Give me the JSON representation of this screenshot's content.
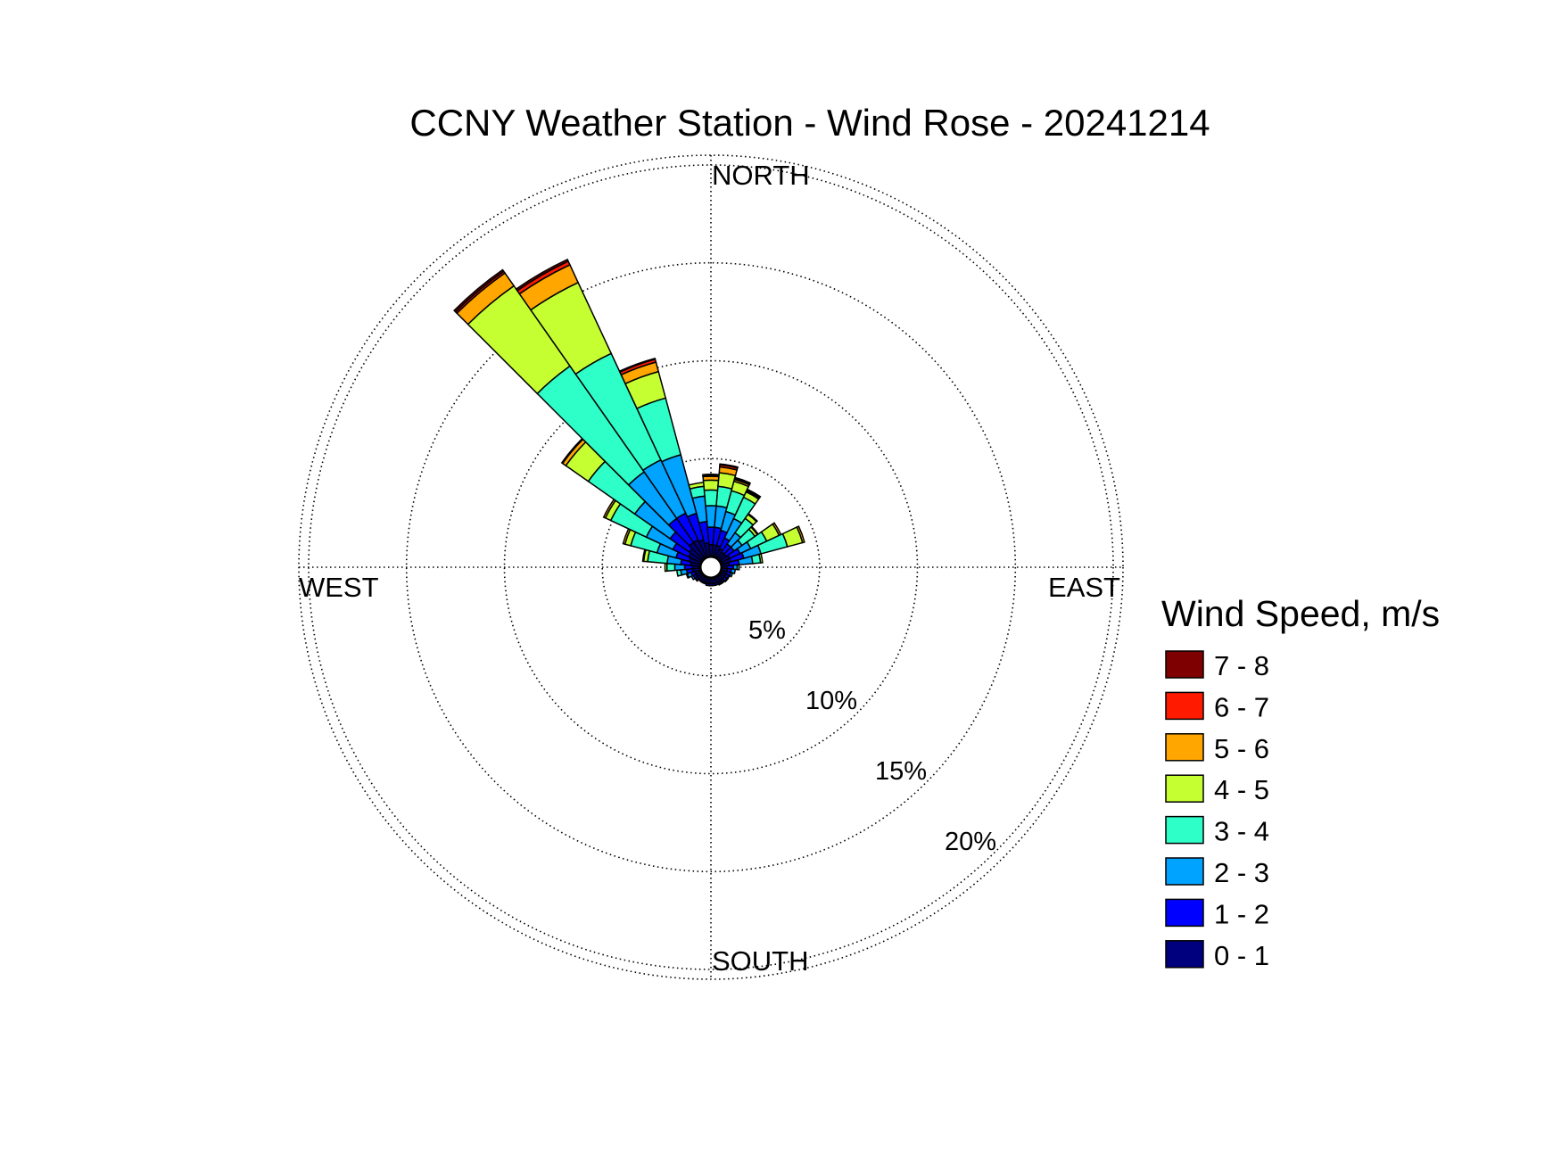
{
  "chart_data": {
    "type": "wind-rose",
    "title": "CCNY Weather Station - Wind Rose - 20241214",
    "directions": {
      "north": "NORTH",
      "east": "EAST",
      "south": "SOUTH",
      "west": "WEST"
    },
    "radial_ticks": [
      5,
      10,
      15,
      20
    ],
    "radial_tick_labels": [
      "5%",
      "10%",
      "15%",
      "20%"
    ],
    "radial_max": 20.5,
    "legend_title": "Wind Speed, m/s",
    "speed_bins": [
      {
        "label": "0 - 1",
        "color": "#00007F"
      },
      {
        "label": "1 - 2",
        "color": "#0000FF"
      },
      {
        "label": "2 - 3",
        "color": "#00A3FF"
      },
      {
        "label": "3 - 4",
        "color": "#2EFFC9"
      },
      {
        "label": "4 - 5",
        "color": "#C5FF32"
      },
      {
        "label": "5 - 6",
        "color": "#FFA600"
      },
      {
        "label": "6 - 7",
        "color": "#FF1A00"
      },
      {
        "label": "7 - 8",
        "color": "#7F0000"
      }
    ],
    "sector_width_deg": 10,
    "sectors": [
      {
        "direction_deg": 0,
        "cumulative_pct": [
          0.6,
          1.5,
          2.6,
          3.4,
          3.9,
          4.1,
          4.15,
          4.2
        ]
      },
      {
        "direction_deg": 10,
        "cumulative_pct": [
          0.6,
          1.5,
          2.6,
          3.6,
          4.3,
          4.6,
          4.7,
          4.75
        ]
      },
      {
        "direction_deg": 20,
        "cumulative_pct": [
          0.6,
          1.4,
          2.4,
          3.5,
          4.0,
          4.1,
          4.15,
          4.2
        ]
      },
      {
        "direction_deg": 30,
        "cumulative_pct": [
          0.5,
          1.1,
          2.2,
          3.4,
          3.7,
          3.75,
          3.8,
          3.85
        ]
      },
      {
        "direction_deg": 40,
        "cumulative_pct": [
          0.4,
          0.9,
          1.6,
          2.5,
          2.75,
          2.8,
          2.8,
          2.8
        ]
      },
      {
        "direction_deg": 50,
        "cumulative_pct": [
          0.4,
          0.9,
          1.4,
          2.2,
          2.35,
          2.4,
          2.4,
          2.4
        ]
      },
      {
        "direction_deg": 60,
        "cumulative_pct": [
          0.5,
          1.1,
          1.7,
          2.6,
          3.3,
          3.4,
          3.4,
          3.4
        ]
      },
      {
        "direction_deg": 70,
        "cumulative_pct": [
          0.5,
          1.2,
          2.1,
          3.5,
          4.3,
          4.4,
          4.4,
          4.4
        ]
      },
      {
        "direction_deg": 80,
        "cumulative_pct": [
          0.4,
          0.9,
          1.6,
          2.0,
          2.1,
          2.1,
          2.1,
          2.1
        ]
      },
      {
        "direction_deg": 90,
        "cumulative_pct": [
          0.3,
          0.6,
          0.8,
          0.9,
          0.9,
          0.9,
          0.9,
          0.9
        ]
      },
      {
        "direction_deg": 100,
        "cumulative_pct": [
          0.3,
          0.5,
          0.7,
          0.7,
          0.7,
          0.7,
          0.7,
          0.7
        ]
      },
      {
        "direction_deg": 110,
        "cumulative_pct": [
          0.3,
          0.5,
          0.6,
          0.6,
          0.6,
          0.6,
          0.6,
          0.6
        ]
      },
      {
        "direction_deg": 120,
        "cumulative_pct": [
          0.3,
          0.45,
          0.5,
          0.5,
          0.5,
          0.5,
          0.5,
          0.5
        ]
      },
      {
        "direction_deg": 130,
        "cumulative_pct": [
          0.3,
          0.45,
          0.5,
          0.5,
          0.5,
          0.5,
          0.5,
          0.5
        ]
      },
      {
        "direction_deg": 140,
        "cumulative_pct": [
          0.3,
          0.4,
          0.45,
          0.45,
          0.45,
          0.45,
          0.45,
          0.45
        ]
      },
      {
        "direction_deg": 150,
        "cumulative_pct": [
          0.3,
          0.4,
          0.45,
          0.45,
          0.45,
          0.45,
          0.45,
          0.45
        ]
      },
      {
        "direction_deg": 160,
        "cumulative_pct": [
          0.3,
          0.4,
          0.4,
          0.4,
          0.4,
          0.4,
          0.4,
          0.4
        ]
      },
      {
        "direction_deg": 170,
        "cumulative_pct": [
          0.3,
          0.4,
          0.4,
          0.4,
          0.4,
          0.4,
          0.4,
          0.4
        ]
      },
      {
        "direction_deg": 180,
        "cumulative_pct": [
          0.3,
          0.4,
          0.4,
          0.4,
          0.4,
          0.4,
          0.4,
          0.4
        ]
      },
      {
        "direction_deg": 190,
        "cumulative_pct": [
          0.3,
          0.4,
          0.4,
          0.4,
          0.4,
          0.4,
          0.4,
          0.4
        ]
      },
      {
        "direction_deg": 200,
        "cumulative_pct": [
          0.3,
          0.35,
          0.35,
          0.35,
          0.35,
          0.35,
          0.35,
          0.35
        ]
      },
      {
        "direction_deg": 210,
        "cumulative_pct": [
          0.3,
          0.35,
          0.35,
          0.35,
          0.35,
          0.35,
          0.35,
          0.35
        ]
      },
      {
        "direction_deg": 220,
        "cumulative_pct": [
          0.3,
          0.35,
          0.35,
          0.35,
          0.35,
          0.35,
          0.35,
          0.35
        ]
      },
      {
        "direction_deg": 230,
        "cumulative_pct": [
          0.3,
          0.4,
          0.45,
          0.45,
          0.45,
          0.45,
          0.45,
          0.45
        ]
      },
      {
        "direction_deg": 240,
        "cumulative_pct": [
          0.3,
          0.45,
          0.55,
          0.55,
          0.55,
          0.55,
          0.55,
          0.55
        ]
      },
      {
        "direction_deg": 250,
        "cumulative_pct": [
          0.3,
          0.5,
          0.7,
          0.75,
          0.75,
          0.75,
          0.75,
          0.75
        ]
      },
      {
        "direction_deg": 260,
        "cumulative_pct": [
          0.4,
          0.7,
          1.0,
          1.2,
          1.2,
          1.2,
          1.2,
          1.2
        ]
      },
      {
        "direction_deg": 270,
        "cumulative_pct": [
          0.4,
          0.8,
          1.3,
          1.7,
          1.8,
          1.8,
          1.8,
          1.8
        ]
      },
      {
        "direction_deg": 280,
        "cumulative_pct": [
          0.5,
          1.0,
          1.7,
          2.7,
          2.9,
          2.95,
          2.95,
          2.95
        ]
      },
      {
        "direction_deg": 290,
        "cumulative_pct": [
          0.6,
          1.3,
          2.3,
          3.7,
          4.0,
          4.1,
          4.1,
          4.1
        ]
      },
      {
        "direction_deg": 300,
        "cumulative_pct": [
          0.7,
          1.6,
          3.1,
          5.1,
          5.4,
          5.5,
          5.5,
          5.5
        ]
      },
      {
        "direction_deg": 310,
        "cumulative_pct": [
          0.8,
          2.0,
          4.2,
          7.1,
          8.5,
          8.7,
          8.75,
          8.75
        ]
      },
      {
        "direction_deg": 320,
        "cumulative_pct": [
          1.0,
          2.5,
          5.4,
          12.0,
          17.0,
          17.8,
          17.9,
          18.0
        ]
      },
      {
        "direction_deg": 330,
        "cumulative_pct": [
          1.0,
          2.5,
          5.5,
          11.5,
          15.5,
          16.5,
          16.7,
          16.8
        ]
      },
      {
        "direction_deg": 340,
        "cumulative_pct": [
          0.9,
          2.3,
          5.4,
          8.4,
          9.8,
          10.3,
          10.45,
          10.5
        ]
      },
      {
        "direction_deg": 350,
        "cumulative_pct": [
          0.7,
          1.8,
          3.1,
          3.6,
          3.8,
          3.8,
          3.8,
          3.8
        ]
      }
    ]
  }
}
